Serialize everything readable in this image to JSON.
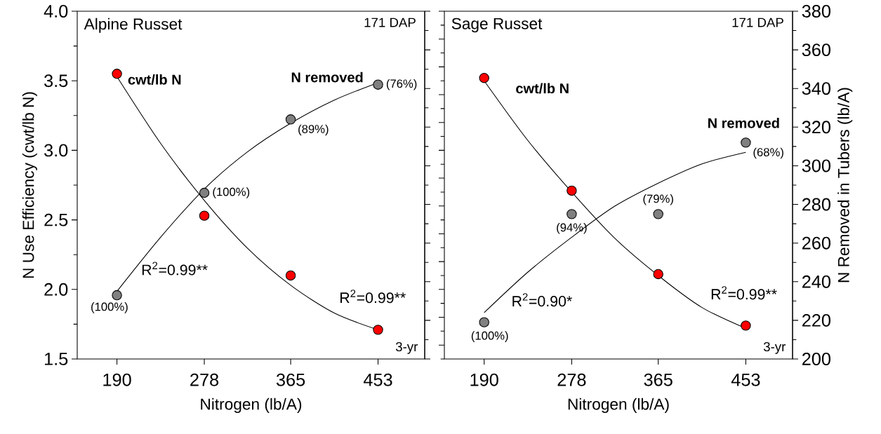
{
  "chart_data": [
    {
      "type": "scatter",
      "title": "Alpine Russet",
      "xlabel": "Nitrogen (lb/A)",
      "ylabel": "N Use Efficiency (cwt/lb N)",
      "xlim": [
        150,
        500
      ],
      "xticks": [
        190,
        278,
        365,
        453
      ],
      "ylim": [
        1.5,
        4.0
      ],
      "yticks": [
        1.5,
        {
          "value": 2.0,
          "label": "2.0"
        },
        2.5,
        {
          "value": 3.0,
          "label": "3.0"
        },
        3.5,
        {
          "value": 4.0,
          "label": "4.0"
        }
      ],
      "y2lim": [
        200,
        380
      ],
      "tick_labels": "xy",
      "marker": "circle",
      "annotations": [
        "171 DAP",
        "3-yr",
        "R$^{2}$=0.99**",
        "R$^{2}$=0.99**",
        "(100%)",
        "(100%)",
        "(89%)",
        "(76%)"
      ],
      "series": [
        {
          "type": "line",
          "axis": "y",
          "color": "#000000",
          "marker": "none",
          "x": [
            190,
            234,
            278,
            321,
            365,
            409,
            453
          ],
          "values": [
            3.53,
            3.05,
            2.64,
            2.3,
            2.03,
            1.83,
            1.71
          ]
        },
        {
          "type": "line",
          "axis": "y2",
          "color": "#000000",
          "marker": "none",
          "x": [
            190,
            234,
            278,
            321,
            365,
            409,
            453
          ],
          "values": [
            235,
            263,
            288,
            307,
            322,
            334,
            343
          ]
        },
        {
          "axis": "y",
          "name": "cwt/lb N",
          "color": "#ff0000",
          "x": [
            190,
            278,
            365,
            453
          ],
          "values": [
            3.55,
            2.53,
            2.1,
            1.71
          ]
        },
        {
          "axis": "y2",
          "name": "N removed",
          "color": "#808080",
          "x": [
            190,
            278,
            365,
            453
          ],
          "values": [
            233,
            286,
            324,
            342
          ]
        }
      ]
    },
    {
      "type": "scatter",
      "title": "Sage Russet",
      "xlabel": "Nitrogen (lb/A)",
      "y2label": "N Removed in Tubers (lb/A)",
      "xlim": [
        150,
        500
      ],
      "xticks": [
        190,
        278,
        365,
        453
      ],
      "ylim": [
        1.5,
        4.0
      ],
      "y2lim": [
        200,
        380
      ],
      "y2ticks": [
        200,
        220,
        240,
        260,
        280,
        300,
        320,
        340,
        360,
        380
      ],
      "tick_labels": "xy2",
      "marker": "circle",
      "annotations": [
        "171 DAP",
        "3-yr",
        "R$^{2}$=0.90*",
        "R$^{2}$=0.99**",
        "(100%)",
        "(94%)",
        "(79%)",
        "(68%)"
      ],
      "series": [
        {
          "type": "line",
          "axis": "y",
          "color": "#000000",
          "marker": "none",
          "x": [
            190,
            234,
            278,
            321,
            365,
            409,
            453
          ],
          "values": [
            3.5,
            3.07,
            2.7,
            2.37,
            2.1,
            1.87,
            1.72
          ]
        },
        {
          "type": "line",
          "axis": "y2",
          "color": "#000000",
          "marker": "none",
          "x": [
            190,
            234,
            278,
            321,
            365,
            409,
            453
          ],
          "values": [
            224,
            245,
            263,
            279,
            291,
            301,
            307
          ]
        },
        {
          "axis": "y",
          "name": "cwt/lb N",
          "color": "#ff0000",
          "x": [
            190,
            278,
            365,
            453
          ],
          "values": [
            3.52,
            2.71,
            2.11,
            1.74
          ]
        },
        {
          "axis": "y2",
          "name": "N removed",
          "color": "#808080",
          "x": [
            190,
            278,
            365,
            453
          ],
          "values": [
            219,
            275,
            275,
            312
          ]
        }
      ]
    }
  ]
}
